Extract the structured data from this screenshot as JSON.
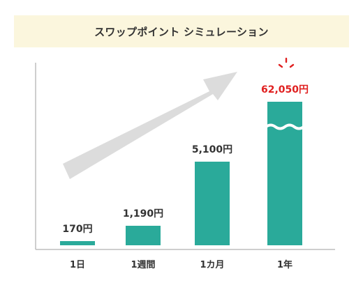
{
  "title": "スワップポイント シミュレーション",
  "chart_data": {
    "type": "bar",
    "title": "スワップポイント シミュレーション",
    "categories": [
      "1日",
      "1週間",
      "1カ月",
      "1年"
    ],
    "values": [
      170,
      1190,
      5100,
      62050
    ],
    "value_labels": [
      "170円",
      "1,190円",
      "5,100円",
      "62,050円"
    ],
    "unit": "円",
    "broken_axis_bar": "1年",
    "highlight_bar": "1年",
    "xlabel": "",
    "ylabel": "",
    "grid": false,
    "legend": "none"
  },
  "colors": {
    "bar": "#2aaa9a",
    "highlight_label": "#e02020",
    "arrow": "#dcdcdc",
    "title_band": "#fbf6dd",
    "axis": "#bdbdbd",
    "text": "#333333"
  }
}
